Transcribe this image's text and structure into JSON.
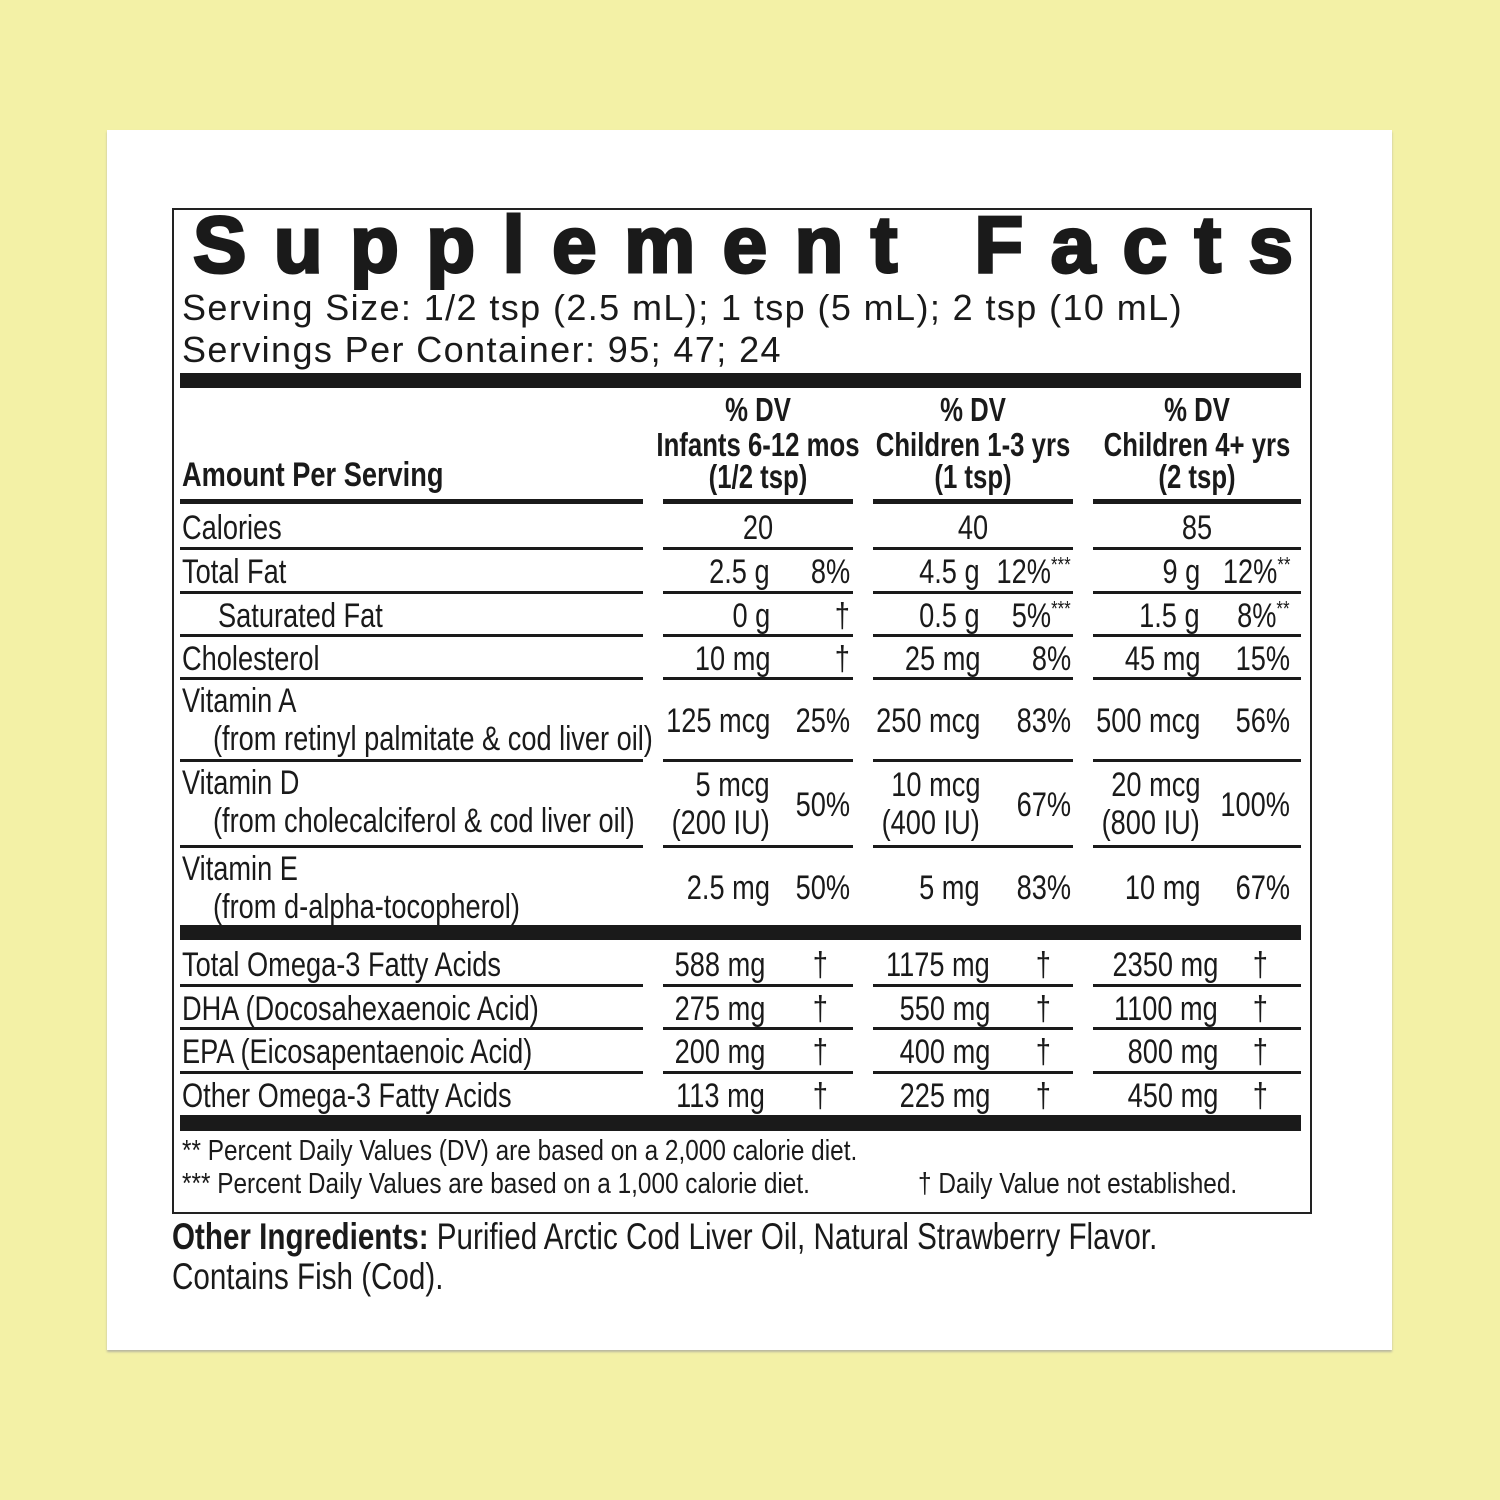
{
  "title": "Supplement Facts",
  "serving_size": "Serving Size: 1/2 tsp (2.5 mL); 1 tsp (5 mL); 2 tsp (10 mL)",
  "servings_per_container": "Servings Per Container: 95; 47; 24",
  "header": {
    "amount": "Amount Per Serving",
    "columns": [
      [
        "% DV",
        "Infants 6-12 mos",
        "(1/2 tsp)"
      ],
      [
        "% DV",
        "Children 1-3 yrs",
        "(1 tsp)"
      ],
      [
        "% DV",
        "Children 4+ yrs",
        "(2 tsp)"
      ]
    ]
  },
  "rows": [
    {
      "name": "Calories",
      "cells": [
        {
          "amount": "20"
        },
        {
          "amount": "40"
        },
        {
          "amount": "85"
        }
      ]
    },
    {
      "name": "Total Fat",
      "cells": [
        {
          "amount": "2.5 g",
          "dv": "8%"
        },
        {
          "amount": "4.5 g",
          "dv": "12%",
          "note": "***"
        },
        {
          "amount": "9 g",
          "dv": "12%",
          "note": "**"
        }
      ]
    },
    {
      "name": "Saturated Fat",
      "cells": [
        {
          "amount": "0 g",
          "dv": "†"
        },
        {
          "amount": "0.5 g",
          "dv": "5%",
          "note": "***"
        },
        {
          "amount": "1.5 g",
          "dv": "8%",
          "note": "**"
        }
      ]
    },
    {
      "name": "Cholesterol",
      "cells": [
        {
          "amount": "10 mg",
          "dv": "†"
        },
        {
          "amount": "25 mg",
          "dv": "8%"
        },
        {
          "amount": "45 mg",
          "dv": "15%"
        }
      ]
    },
    {
      "name": "Vitamin A",
      "sub": "(from retinyl palmitate & cod liver oil)",
      "cells": [
        {
          "amount": "125 mcg",
          "dv": "25%"
        },
        {
          "amount": "250 mcg",
          "dv": "83%"
        },
        {
          "amount": "500 mcg",
          "dv": "56%"
        }
      ]
    },
    {
      "name": "Vitamin D",
      "sub": "(from cholecalciferol & cod liver oil)",
      "cells": [
        {
          "amount": "5 mcg",
          "amount_iu": "(200 IU)",
          "dv": "50%"
        },
        {
          "amount": "10 mcg",
          "amount_iu": "(400 IU)",
          "dv": "67%"
        },
        {
          "amount": "20 mcg",
          "amount_iu": "(800 IU)",
          "dv": "100%"
        }
      ]
    },
    {
      "name": "Vitamin E",
      "sub": "(from d-alpha-tocopherol)",
      "cells": [
        {
          "amount": "2.5 mg",
          "dv": "50%"
        },
        {
          "amount": "5 mg",
          "dv": "83%"
        },
        {
          "amount": "10 mg",
          "dv": "67%"
        }
      ]
    },
    {
      "name": "Total Omega-3 Fatty Acids",
      "cells": [
        {
          "amount": "588 mg",
          "dv": "†"
        },
        {
          "amount": "1175 mg",
          "dv": "†"
        },
        {
          "amount": "2350 mg",
          "dv": "†"
        }
      ]
    },
    {
      "name": "DHA (Docosahexaenoic Acid)",
      "cells": [
        {
          "amount": "275 mg",
          "dv": "†"
        },
        {
          "amount": "550 mg",
          "dv": "†"
        },
        {
          "amount": "1100 mg",
          "dv": "†"
        }
      ]
    },
    {
      "name": "EPA (Eicosapentaenoic Acid)",
      "cells": [
        {
          "amount": "200 mg",
          "dv": "†"
        },
        {
          "amount": "400 mg",
          "dv": "†"
        },
        {
          "amount": "800 mg",
          "dv": "†"
        }
      ]
    },
    {
      "name": "Other Omega-3 Fatty Acids",
      "cells": [
        {
          "amount": "113 mg",
          "dv": "†"
        },
        {
          "amount": "225 mg",
          "dv": "†"
        },
        {
          "amount": "450 mg",
          "dv": "†"
        }
      ]
    }
  ],
  "footnotes": [
    "** Percent Daily Values (DV) are based on a 2,000 calorie diet.",
    "*** Percent Daily Values are based on a 1,000 calorie diet.",
    "† Daily Value not established."
  ],
  "other_ingredients": {
    "label": "Other Ingredients:",
    "lines": [
      "Purified Arctic Cod Liver Oil, Natural Strawberry Flavor.",
      "Contains Fish (Cod)."
    ]
  }
}
